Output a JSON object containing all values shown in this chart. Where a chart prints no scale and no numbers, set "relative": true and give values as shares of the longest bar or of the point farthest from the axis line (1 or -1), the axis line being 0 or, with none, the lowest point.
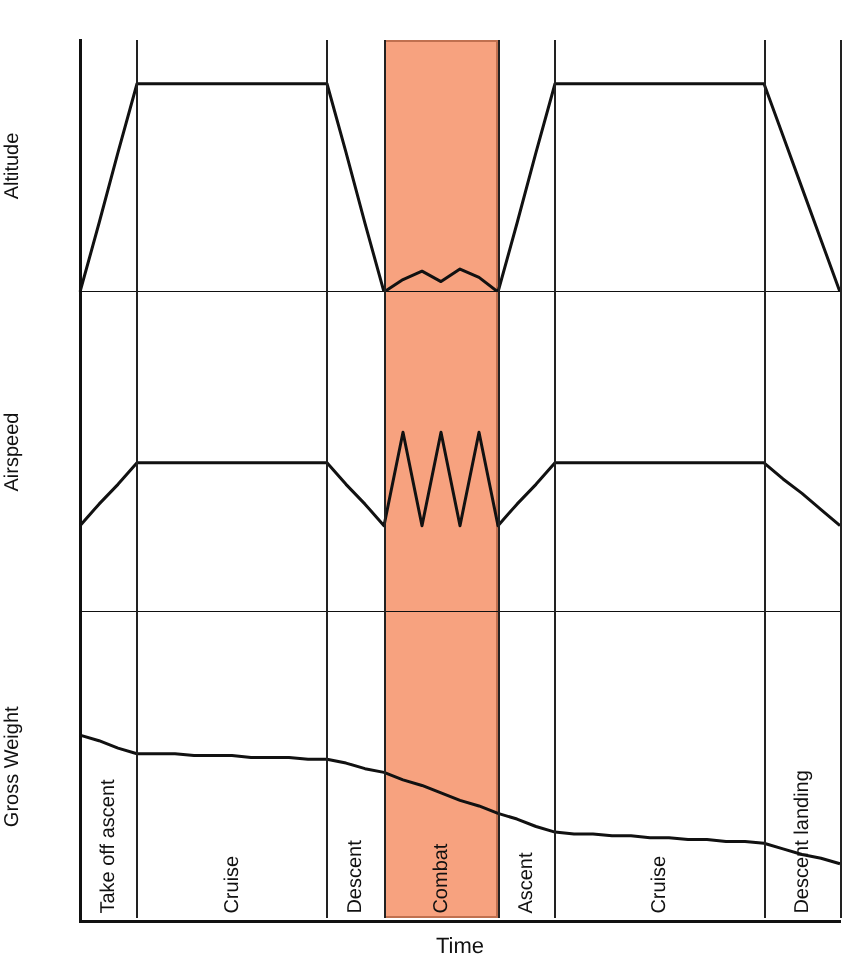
{
  "chart_data": [
    {
      "type": "line",
      "ylabel": "Altitude",
      "relative": true,
      "tick_labels": false,
      "grid": false,
      "legend": false,
      "marker": "none",
      "categories": [
        null,
        null,
        null,
        null,
        null,
        null,
        null,
        null,
        null,
        null,
        null,
        null,
        null,
        null,
        null,
        null,
        null,
        null,
        null,
        null,
        null,
        null,
        null,
        null,
        null,
        null,
        null,
        null,
        null,
        null,
        null,
        null,
        null,
        null,
        null,
        null,
        null,
        null,
        null,
        null,
        null
      ],
      "series": [
        {
          "color": "#111111",
          "values": [
            0,
            0.33,
            0.67,
            1,
            1,
            1,
            1,
            1,
            1,
            1,
            1,
            1,
            1,
            1,
            0.67,
            0.33,
            0,
            0.06,
            0.1,
            0.05,
            0.11,
            0.07,
            0,
            0.33,
            0.67,
            1,
            1,
            1,
            1,
            1,
            1,
            1,
            1,
            1,
            1,
            1,
            1,
            0.75,
            0.5,
            0.25,
            0
          ]
        }
      ]
    },
    {
      "type": "line",
      "ylabel": "Airspeed",
      "relative": true,
      "tick_labels": false,
      "grid": false,
      "legend": false,
      "marker": "none",
      "categories": [
        null,
        null,
        null,
        null,
        null,
        null,
        null,
        null,
        null,
        null,
        null,
        null,
        null,
        null,
        null,
        null,
        null,
        null,
        null,
        null,
        null,
        null,
        null,
        null,
        null,
        null,
        null,
        null,
        null,
        null,
        null,
        null,
        null,
        null,
        null,
        null,
        null,
        null,
        null,
        null,
        null
      ],
      "series": [
        {
          "color": "#111111",
          "values": [
            0.48,
            0.6,
            0.71,
            0.83,
            0.83,
            0.83,
            0.83,
            0.83,
            0.83,
            0.83,
            0.83,
            0.83,
            0.83,
            0.83,
            0.71,
            0.6,
            0.48,
            1,
            0.48,
            1,
            0.48,
            1,
            0.48,
            0.6,
            0.71,
            0.83,
            0.83,
            0.83,
            0.83,
            0.83,
            0.83,
            0.83,
            0.83,
            0.83,
            0.83,
            0.83,
            0.83,
            0.74,
            0.66,
            0.57,
            0.48
          ]
        }
      ]
    },
    {
      "type": "line",
      "ylabel": "Gross Weight",
      "xlabel": "Time",
      "relative": true,
      "tick_labels": false,
      "grid": false,
      "legend": false,
      "marker": "none",
      "categories": [
        null,
        null,
        null,
        null,
        null,
        null,
        null,
        null,
        null,
        null,
        null,
        null,
        null,
        null,
        null,
        null,
        null,
        null,
        null,
        null,
        null,
        null,
        null,
        null,
        null,
        null,
        null,
        null,
        null,
        null,
        null,
        null,
        null,
        null,
        null,
        null,
        null,
        null,
        null,
        null,
        null
      ],
      "series": [
        {
          "color": "#111111",
          "values": [
            1,
            0.97,
            0.93,
            0.9,
            0.9,
            0.9,
            0.89,
            0.89,
            0.89,
            0.88,
            0.88,
            0.88,
            0.87,
            0.87,
            0.85,
            0.82,
            0.8,
            0.76,
            0.73,
            0.69,
            0.65,
            0.62,
            0.58,
            0.55,
            0.51,
            0.48,
            0.47,
            0.47,
            0.46,
            0.46,
            0.45,
            0.45,
            0.44,
            0.44,
            0.43,
            0.43,
            0.42,
            0.39,
            0.36,
            0.34,
            0.31
          ]
        }
      ],
      "annotations": [
        "Take off ascent",
        "Cruise",
        "Descent",
        "Combat",
        "Ascent",
        "Cruise",
        "Descent landing"
      ]
    }
  ]
}
